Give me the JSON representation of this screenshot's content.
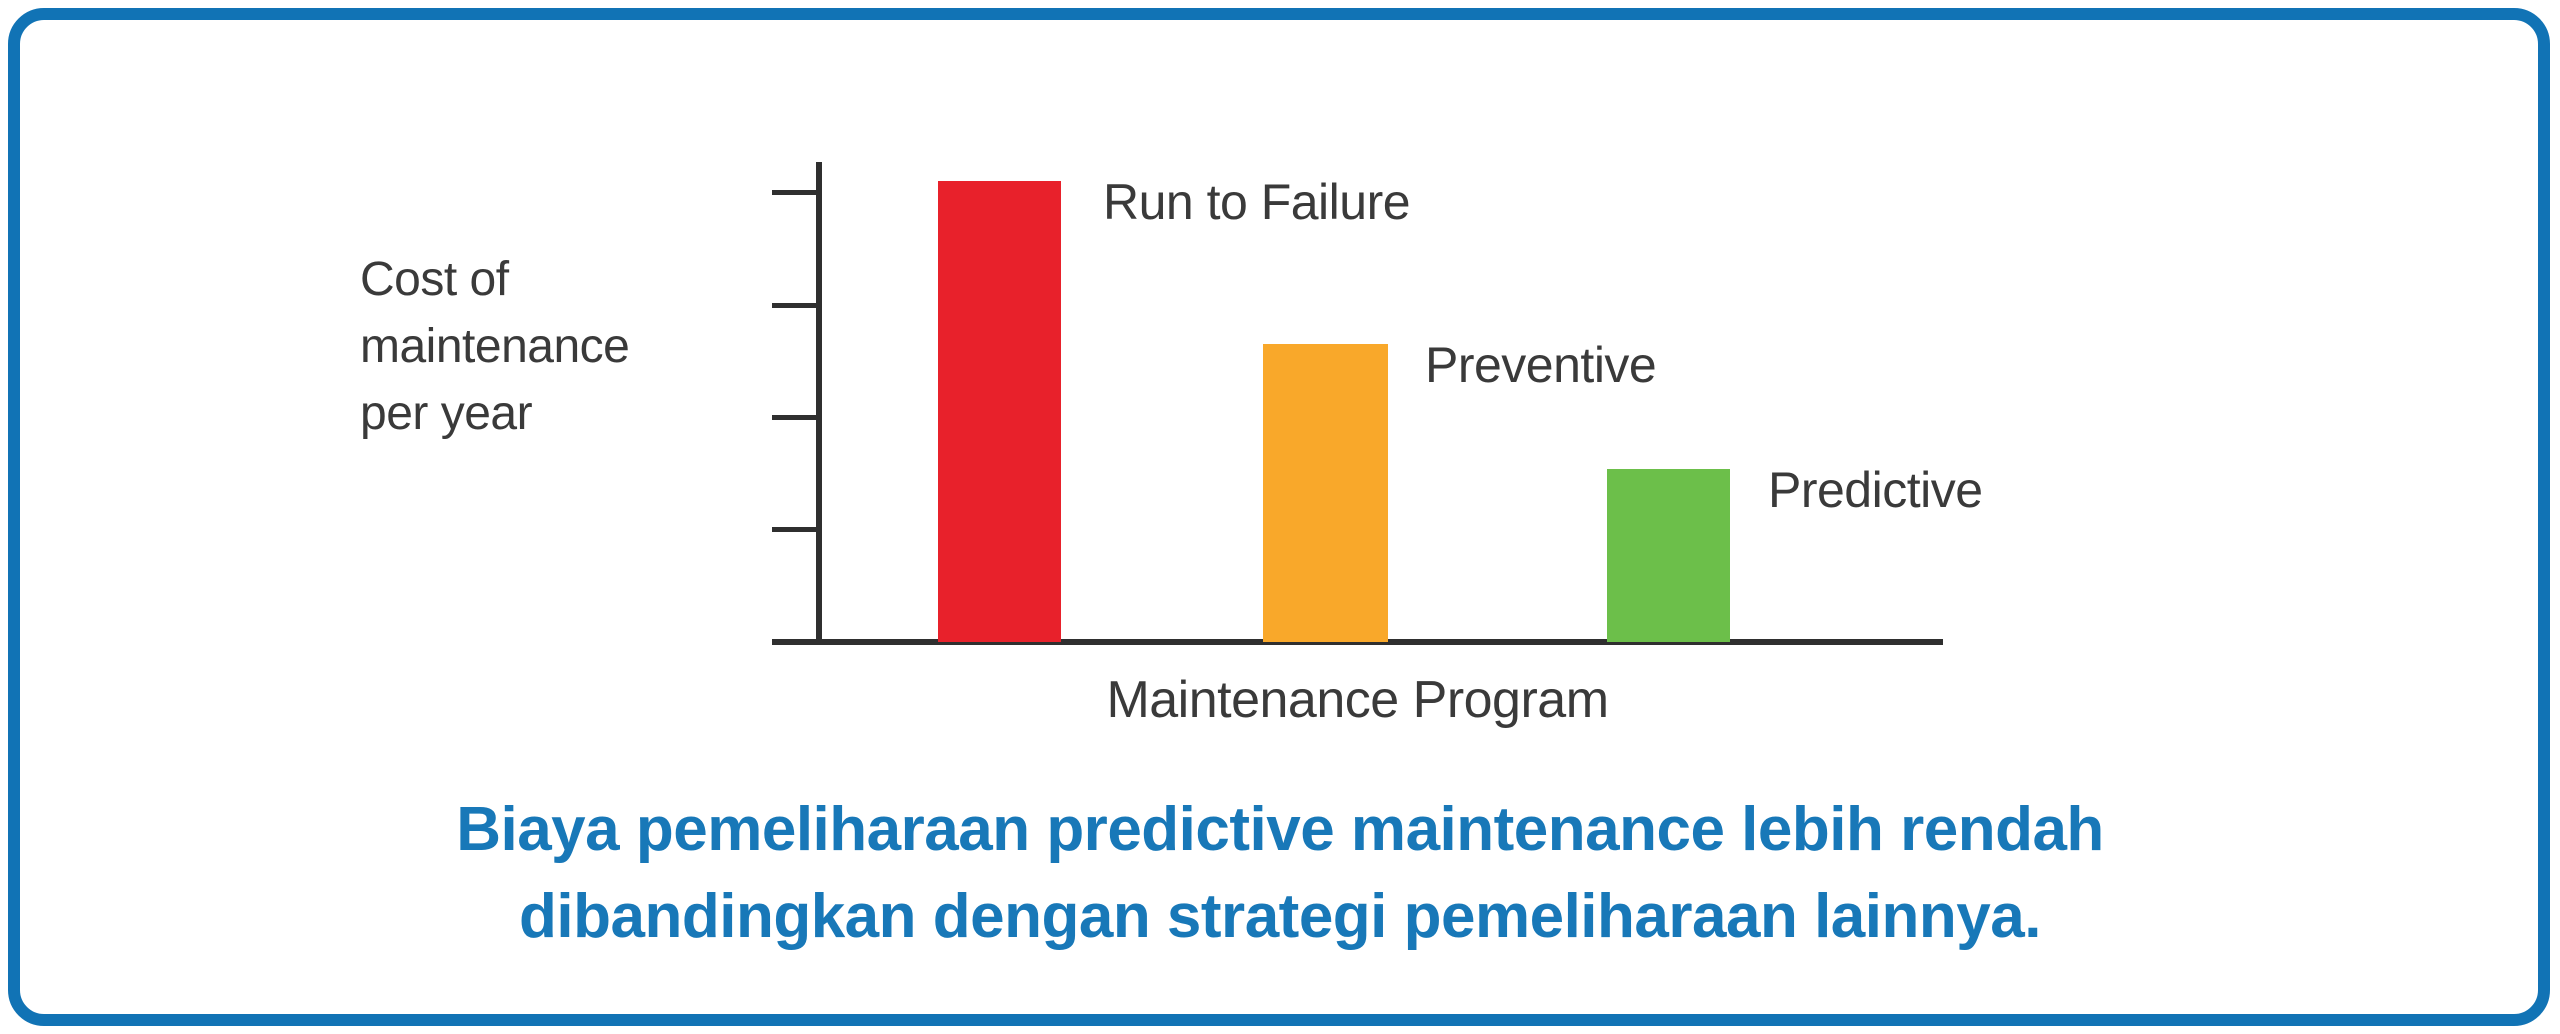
{
  "card": {
    "border_color": "#1173b5",
    "background": "#ffffff"
  },
  "chart": {
    "y_axis_label": "Cost of\nmaintenance\nper year",
    "x_axis_label": "Maintenance Program",
    "axis_color": "#2f2f2f",
    "label_color": "#3a3a3a"
  },
  "caption": {
    "text_color": "#1878b8",
    "line1": "Biaya pemeliharaan predictive maintenance lebih rendah",
    "line2": "dibandingkan dengan strategi pemeliharaan lainnya."
  },
  "chart_data": {
    "type": "bar",
    "categories": [
      "Run to Failure",
      "Preventive",
      "Predictive"
    ],
    "values": [
      96,
      62,
      36
    ],
    "colors": [
      "#e8212b",
      "#f9a82a",
      "#6cbf4a"
    ],
    "title": "",
    "xlabel": "Maintenance Program",
    "ylabel": "Cost of maintenance per year",
    "ylim": [
      0,
      100
    ],
    "y_tick_count": 4,
    "value_labels_shown": false,
    "legend": "none"
  }
}
